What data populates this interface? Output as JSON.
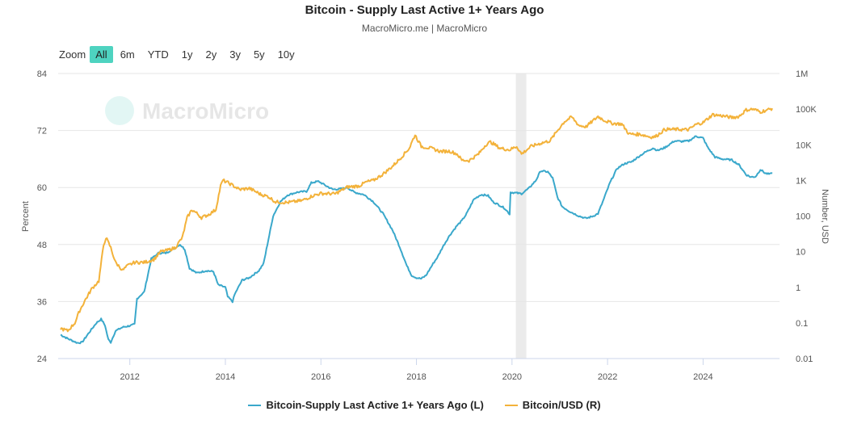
{
  "header": {
    "title": "Bitcoin - Supply Last Active 1+ Years Ago",
    "subtitle": "MacroMicro.me | MacroMicro"
  },
  "zoom": {
    "label": "Zoom",
    "buttons": [
      "All",
      "6m",
      "YTD",
      "1y",
      "2y",
      "3y",
      "5y",
      "10y"
    ],
    "active": "All"
  },
  "watermark": "MacroMicro",
  "colors": {
    "supply": "#3aa8cb",
    "price": "#f3b23a",
    "shade": "#ebebeb",
    "grid": "#e6e6e6"
  },
  "chart_data": {
    "type": "line",
    "x_ticks": [
      2012,
      2014,
      2016,
      2018,
      2020,
      2022,
      2024
    ],
    "xlim": [
      2010.5,
      2025.6
    ],
    "shaded_period": [
      2020.08,
      2020.3
    ],
    "left_axis": {
      "label": "Percent",
      "ticks": [
        24,
        36,
        48,
        60,
        72,
        84
      ],
      "ylim": [
        24,
        84
      ]
    },
    "right_axis": {
      "label": "Number, USD",
      "scale": "log",
      "ticks": [
        0.01,
        0.1,
        1,
        10,
        100,
        1000,
        10000,
        100000,
        1000000
      ],
      "tick_labels": [
        "0.01",
        "0.1",
        "1",
        "10",
        "100",
        "1K",
        "10K",
        "100K",
        "1M"
      ],
      "ylim": [
        0.01,
        1000000
      ]
    },
    "series": [
      {
        "name": "Bitcoin-Supply Last Active 1+ Years Ago (L)",
        "axis": "left",
        "points": [
          [
            2010.55,
            29
          ],
          [
            2010.7,
            28.2
          ],
          [
            2010.9,
            27.3
          ],
          [
            2011.0,
            27.4
          ],
          [
            2011.15,
            29.5
          ],
          [
            2011.3,
            31.5
          ],
          [
            2011.4,
            32.3
          ],
          [
            2011.48,
            31.0
          ],
          [
            2011.55,
            28.0
          ],
          [
            2011.6,
            27.4
          ],
          [
            2011.7,
            29.8
          ],
          [
            2011.85,
            30.6
          ],
          [
            2012.0,
            30.9
          ],
          [
            2012.1,
            31.2
          ],
          [
            2012.15,
            36.6
          ],
          [
            2012.3,
            38.0
          ],
          [
            2012.45,
            45.0
          ],
          [
            2012.6,
            46.2
          ],
          [
            2012.75,
            46.2
          ],
          [
            2012.9,
            47.0
          ],
          [
            2013.05,
            48.0
          ],
          [
            2013.15,
            47.0
          ],
          [
            2013.25,
            43.0
          ],
          [
            2013.4,
            42.0
          ],
          [
            2013.6,
            42.5
          ],
          [
            2013.75,
            42.3
          ],
          [
            2013.85,
            39.5
          ],
          [
            2014.0,
            39.0
          ],
          [
            2014.05,
            37.0
          ],
          [
            2014.15,
            36.0
          ],
          [
            2014.2,
            37.6
          ],
          [
            2014.35,
            40.5
          ],
          [
            2014.5,
            41.0
          ],
          [
            2014.7,
            42.5
          ],
          [
            2014.8,
            44.0
          ],
          [
            2014.9,
            49.0
          ],
          [
            2015.0,
            54.0
          ],
          [
            2015.15,
            57.0
          ],
          [
            2015.3,
            58.4
          ],
          [
            2015.5,
            59.0
          ],
          [
            2015.7,
            59.2
          ],
          [
            2015.8,
            61.0
          ],
          [
            2015.95,
            61.3
          ],
          [
            2016.1,
            60.4
          ],
          [
            2016.25,
            59.6
          ],
          [
            2016.4,
            59.7
          ],
          [
            2016.55,
            60.0
          ],
          [
            2016.7,
            59.0
          ],
          [
            2016.9,
            58.5
          ],
          [
            2017.1,
            57.0
          ],
          [
            2017.3,
            54.5
          ],
          [
            2017.5,
            51.0
          ],
          [
            2017.65,
            47.5
          ],
          [
            2017.8,
            43.5
          ],
          [
            2017.9,
            41.5
          ],
          [
            2018.0,
            41.0
          ],
          [
            2018.1,
            40.8
          ],
          [
            2018.2,
            41.5
          ],
          [
            2018.35,
            44.0
          ],
          [
            2018.45,
            45.5
          ],
          [
            2018.55,
            47.5
          ],
          [
            2018.7,
            50.0
          ],
          [
            2018.85,
            52.0
          ],
          [
            2018.95,
            53.0
          ],
          [
            2019.05,
            54.5
          ],
          [
            2019.2,
            57.5
          ],
          [
            2019.35,
            58.5
          ],
          [
            2019.5,
            58.3
          ],
          [
            2019.6,
            57.0
          ],
          [
            2019.75,
            56.2
          ],
          [
            2019.85,
            55.6
          ],
          [
            2019.95,
            54.4
          ],
          [
            2019.97,
            59.0
          ],
          [
            2020.05,
            58.9
          ],
          [
            2020.2,
            58.7
          ],
          [
            2020.35,
            59.8
          ],
          [
            2020.5,
            61.5
          ],
          [
            2020.6,
            63.5
          ],
          [
            2020.75,
            63.3
          ],
          [
            2020.85,
            62.0
          ],
          [
            2020.95,
            58.0
          ],
          [
            2021.05,
            56.0
          ],
          [
            2021.2,
            55.0
          ],
          [
            2021.4,
            54.0
          ],
          [
            2021.55,
            53.5
          ],
          [
            2021.7,
            54.0
          ],
          [
            2021.8,
            54.5
          ],
          [
            2021.9,
            57.0
          ],
          [
            2022.05,
            61.0
          ],
          [
            2022.2,
            64.0
          ],
          [
            2022.35,
            65.0
          ],
          [
            2022.5,
            65.4
          ],
          [
            2022.65,
            66.5
          ],
          [
            2022.8,
            67.5
          ],
          [
            2022.95,
            68.3
          ],
          [
            2023.05,
            67.8
          ],
          [
            2023.2,
            68.4
          ],
          [
            2023.4,
            69.8
          ],
          [
            2023.55,
            69.7
          ],
          [
            2023.7,
            69.8
          ],
          [
            2023.85,
            70.8
          ],
          [
            2024.0,
            70.4
          ],
          [
            2024.1,
            68.4
          ],
          [
            2024.25,
            66.4
          ],
          [
            2024.4,
            66.0
          ],
          [
            2024.6,
            65.8
          ],
          [
            2024.75,
            64.8
          ],
          [
            2024.9,
            62.7
          ],
          [
            2025.0,
            62.2
          ],
          [
            2025.1,
            62.3
          ],
          [
            2025.2,
            63.8
          ],
          [
            2025.3,
            63.0
          ],
          [
            2025.4,
            62.8
          ],
          [
            2025.45,
            63.0
          ]
        ]
      },
      {
        "name": "Bitcoin/USD (R)",
        "axis": "right",
        "points": [
          [
            2010.55,
            0.07
          ],
          [
            2010.7,
            0.06
          ],
          [
            2010.85,
            0.1
          ],
          [
            2010.95,
            0.22
          ],
          [
            2011.05,
            0.4
          ],
          [
            2011.2,
            0.9
          ],
          [
            2011.35,
            1.5
          ],
          [
            2011.45,
            15
          ],
          [
            2011.5,
            25
          ],
          [
            2011.6,
            13
          ],
          [
            2011.7,
            5
          ],
          [
            2011.85,
            3
          ],
          [
            2011.95,
            4
          ],
          [
            2012.1,
            5
          ],
          [
            2012.3,
            5
          ],
          [
            2012.5,
            6
          ],
          [
            2012.65,
            10
          ],
          [
            2012.8,
            11
          ],
          [
            2012.95,
            13
          ],
          [
            2013.1,
            25
          ],
          [
            2013.2,
            90
          ],
          [
            2013.3,
            150
          ],
          [
            2013.4,
            120
          ],
          [
            2013.5,
            90
          ],
          [
            2013.65,
            110
          ],
          [
            2013.8,
            150
          ],
          [
            2013.9,
            700
          ],
          [
            2013.95,
            1000
          ],
          [
            2014.1,
            800
          ],
          [
            2014.3,
            550
          ],
          [
            2014.5,
            600
          ],
          [
            2014.75,
            400
          ],
          [
            2014.9,
            350
          ],
          [
            2015.05,
            250
          ],
          [
            2015.3,
            240
          ],
          [
            2015.6,
            270
          ],
          [
            2015.85,
            380
          ],
          [
            2016.0,
            430
          ],
          [
            2016.3,
            420
          ],
          [
            2016.55,
            650
          ],
          [
            2016.8,
            700
          ],
          [
            2016.95,
            900
          ],
          [
            2017.1,
            1000
          ],
          [
            2017.3,
            1500
          ],
          [
            2017.5,
            2500
          ],
          [
            2017.65,
            4000
          ],
          [
            2017.85,
            8000
          ],
          [
            2017.97,
            19000
          ],
          [
            2018.1,
            9000
          ],
          [
            2018.3,
            8000
          ],
          [
            2018.5,
            6500
          ],
          [
            2018.7,
            6600
          ],
          [
            2018.85,
            5500
          ],
          [
            2018.95,
            3700
          ],
          [
            2019.1,
            3600
          ],
          [
            2019.3,
            5500
          ],
          [
            2019.45,
            10000
          ],
          [
            2019.55,
            12000
          ],
          [
            2019.75,
            8000
          ],
          [
            2019.95,
            7200
          ],
          [
            2020.1,
            9000
          ],
          [
            2020.2,
            5500
          ],
          [
            2020.4,
            9000
          ],
          [
            2020.6,
            11000
          ],
          [
            2020.8,
            13000
          ],
          [
            2020.95,
            25000
          ],
          [
            2021.1,
            45000
          ],
          [
            2021.25,
            60000
          ],
          [
            2021.4,
            35000
          ],
          [
            2021.55,
            32000
          ],
          [
            2021.8,
            62000
          ],
          [
            2021.95,
            47000
          ],
          [
            2022.1,
            40000
          ],
          [
            2022.3,
            38000
          ],
          [
            2022.45,
            20000
          ],
          [
            2022.7,
            19500
          ],
          [
            2022.9,
            16500
          ],
          [
            2023.0,
            16800
          ],
          [
            2023.2,
            27000
          ],
          [
            2023.45,
            27000
          ],
          [
            2023.7,
            26500
          ],
          [
            2023.85,
            37000
          ],
          [
            2024.0,
            42000
          ],
          [
            2024.2,
            70000
          ],
          [
            2024.4,
            65000
          ],
          [
            2024.6,
            58000
          ],
          [
            2024.75,
            62000
          ],
          [
            2024.9,
            95000
          ],
          [
            2025.05,
            100000
          ],
          [
            2025.2,
            84000
          ],
          [
            2025.35,
            95000
          ],
          [
            2025.45,
            105000
          ]
        ]
      }
    ]
  },
  "legend": {
    "items": [
      {
        "label": "Bitcoin-Supply Last Active 1+ Years Ago (L)"
      },
      {
        "label": "Bitcoin/USD (R)"
      }
    ]
  }
}
